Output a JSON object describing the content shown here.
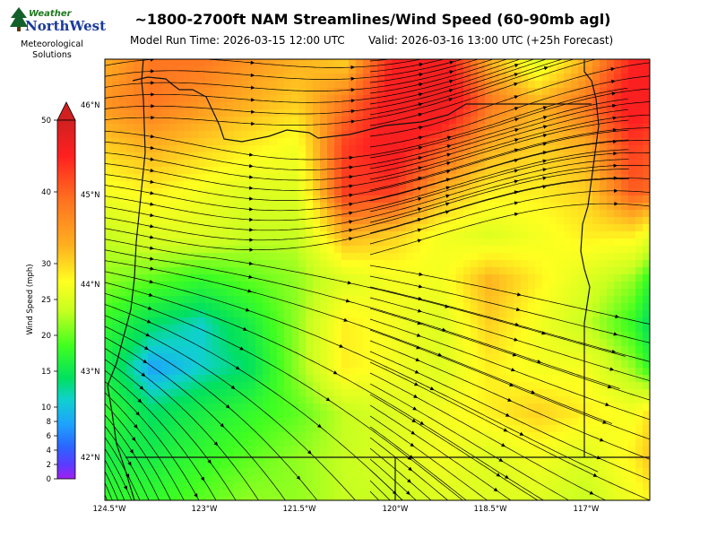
{
  "logo": {
    "word1": "Weather",
    "word2": "NorthWest",
    "sub1": "Meteorological",
    "sub2": "Solutions"
  },
  "title": "~1800-2700ft NAM Streamlines/Wind Speed (60-90mb agl)",
  "run_time": "Model Run Time: 2026-03-15 12:00 UTC",
  "valid_time": "Valid: 2026-03-16 13:00 UTC  (+25h Forecast)",
  "colorbar": {
    "label": "Wind Speed (mph)",
    "ticks": [
      0,
      2,
      4,
      6,
      8,
      10,
      15,
      20,
      25,
      30,
      40,
      50
    ],
    "colors": [
      "#a020f0",
      "#5a3cff",
      "#2a66ff",
      "#1fa0ff",
      "#10d0d0",
      "#00e060",
      "#40ff20",
      "#c8ff20",
      "#ffff20",
      "#ffb020",
      "#ff7020",
      "#ff2020",
      "#d02020"
    ]
  },
  "lat_labels": [
    "46°N",
    "45°N",
    "44°N",
    "43°N",
    "42°N"
  ],
  "lon_labels": [
    "124.5°W",
    "123°W",
    "121.5°W",
    "120°W",
    "118.5°W",
    "117°W"
  ],
  "colors": {
    "streamline": "#000000",
    "border": "#111111"
  },
  "chart_data": {
    "type": "heatmap",
    "title": "~1800-2700ft NAM Streamlines/Wind Speed (60-90mb agl)",
    "variable": "Wind Speed (mph)",
    "lat_range": [
      41.5,
      46.5
    ],
    "lon_range": [
      -124.5,
      -116.0
    ],
    "color_scale": {
      "min": 0,
      "max": 50,
      "ticks": [
        0,
        2,
        4,
        6,
        8,
        10,
        15,
        20,
        25,
        30,
        40,
        50
      ]
    },
    "speed_grid_lat": [
      46.5,
      46.0,
      45.5,
      45.0,
      44.5,
      44.0,
      43.5,
      43.0,
      42.5,
      42.0,
      41.5
    ],
    "speed_grid_lon": [
      -124.5,
      -123.75,
      -123.0,
      -122.25,
      -121.5,
      -120.75,
      -120.0,
      -119.25,
      -118.5,
      -117.75,
      -117.0,
      -116.25,
      -115.9
    ],
    "speed_grid": [
      [
        30,
        34,
        34,
        32,
        30,
        28,
        40,
        42,
        30,
        22,
        30,
        40,
        42
      ],
      [
        32,
        34,
        32,
        30,
        28,
        34,
        42,
        44,
        34,
        30,
        34,
        42,
        40
      ],
      [
        28,
        30,
        28,
        26,
        24,
        38,
        42,
        36,
        30,
        28,
        30,
        38,
        36
      ],
      [
        24,
        26,
        24,
        22,
        22,
        38,
        38,
        30,
        26,
        26,
        28,
        36,
        34
      ],
      [
        20,
        22,
        22,
        20,
        20,
        30,
        28,
        24,
        22,
        24,
        26,
        26,
        22
      ],
      [
        18,
        16,
        14,
        16,
        18,
        22,
        24,
        24,
        30,
        26,
        22,
        18,
        12
      ],
      [
        14,
        10,
        8,
        12,
        18,
        26,
        24,
        22,
        28,
        24,
        20,
        14,
        8
      ],
      [
        12,
        6,
        8,
        10,
        18,
        26,
        24,
        22,
        26,
        24,
        24,
        18,
        12
      ],
      [
        14,
        10,
        12,
        14,
        16,
        20,
        22,
        24,
        26,
        28,
        26,
        24,
        28
      ],
      [
        12,
        12,
        14,
        16,
        18,
        20,
        22,
        24,
        22,
        24,
        22,
        26,
        30
      ],
      [
        14,
        14,
        16,
        18,
        18,
        20,
        20,
        22,
        22,
        22,
        20,
        24,
        26
      ]
    ],
    "streamline_flow": "generally west to east, veering to southeasterly flow over the southern and southwestern portion"
  }
}
